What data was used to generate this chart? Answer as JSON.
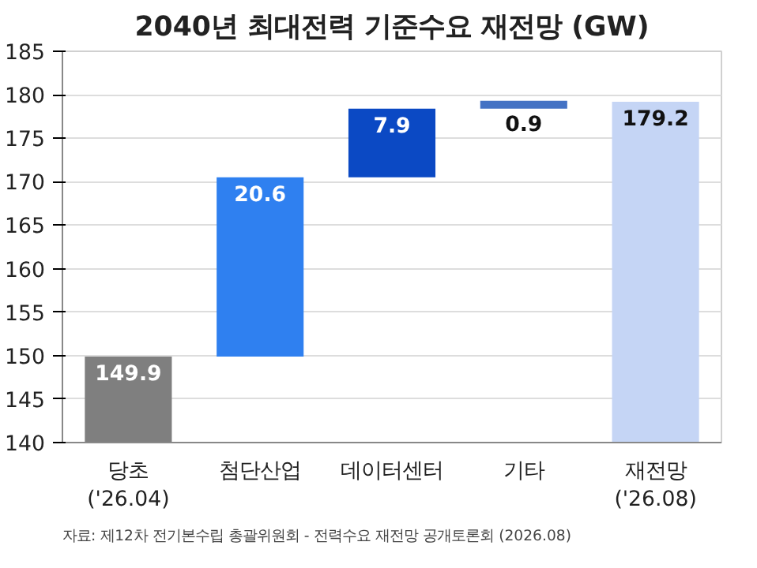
{
  "chart_data": {
    "type": "bar",
    "title": "2040년 최대전력 기준수요 재전망 (GW)",
    "categories": [
      "당초\n('26.04)",
      "첨단산업",
      "데이터센터",
      "기타",
      "재전망\n('26.08)"
    ],
    "values": [
      149.9,
      20.6,
      7.9,
      0.9,
      179.2
    ],
    "base": [
      null,
      149.9,
      170.5,
      178.4,
      null
    ],
    "colors": [
      "#7f7f7f",
      "#2f80f0",
      "#0b49c4",
      "#4472c4",
      "#c5d5f5"
    ],
    "ylim": [
      140,
      185
    ],
    "yticks": [
      140,
      145,
      150,
      155,
      160,
      165,
      170,
      175,
      180,
      185
    ],
    "grid": "y",
    "data_labels": true,
    "annotations": [
      "자료: 제12차 전기본수립 총괄위원회 - 전력수요 재전망 공개토론회 (2026.08)"
    ]
  }
}
